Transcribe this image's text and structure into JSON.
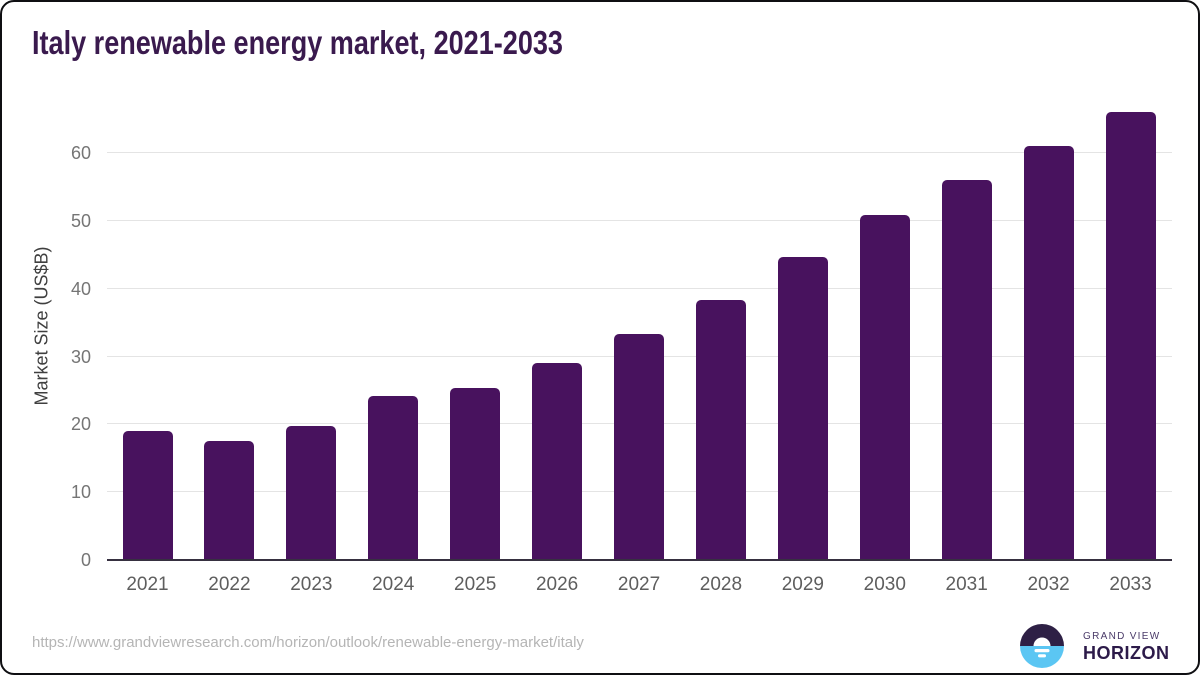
{
  "chart_data": {
    "type": "bar",
    "title": "Italy renewable energy market, 2021-2033",
    "categories": [
      "2021",
      "2022",
      "2023",
      "2024",
      "2025",
      "2026",
      "2027",
      "2028",
      "2029",
      "2030",
      "2031",
      "2032",
      "2033"
    ],
    "values": [
      19.0,
      17.5,
      19.8,
      24.2,
      25.4,
      29.0,
      33.3,
      38.4,
      44.7,
      50.9,
      56.0,
      61.0,
      66.0
    ],
    "xlabel": "",
    "ylabel": "Market Size (US$B)",
    "yticks": [
      0,
      10,
      20,
      30,
      40,
      50,
      60
    ],
    "ylim": [
      0,
      69
    ],
    "grid": "horizontal",
    "legend": "none",
    "bar_color": "#48125e"
  },
  "colors": {
    "title": "#3a1a4e",
    "bar": "#48125e",
    "gridline": "#e4e4e4",
    "axis_line": "#363040",
    "tick_label": "#757575",
    "x_label": "#5e5e5e",
    "url_text": "#b5b5b5",
    "logo_purple": "#2e2045",
    "logo_blue": "#5bc6f3"
  },
  "footer": {
    "source_url": "https://www.grandviewresearch.com/horizon/outlook/renewable-energy-market/italy",
    "logo": {
      "icon": "horizon-sun-icon",
      "line1": "GRAND VIEW",
      "line2": "HORIZON"
    }
  }
}
